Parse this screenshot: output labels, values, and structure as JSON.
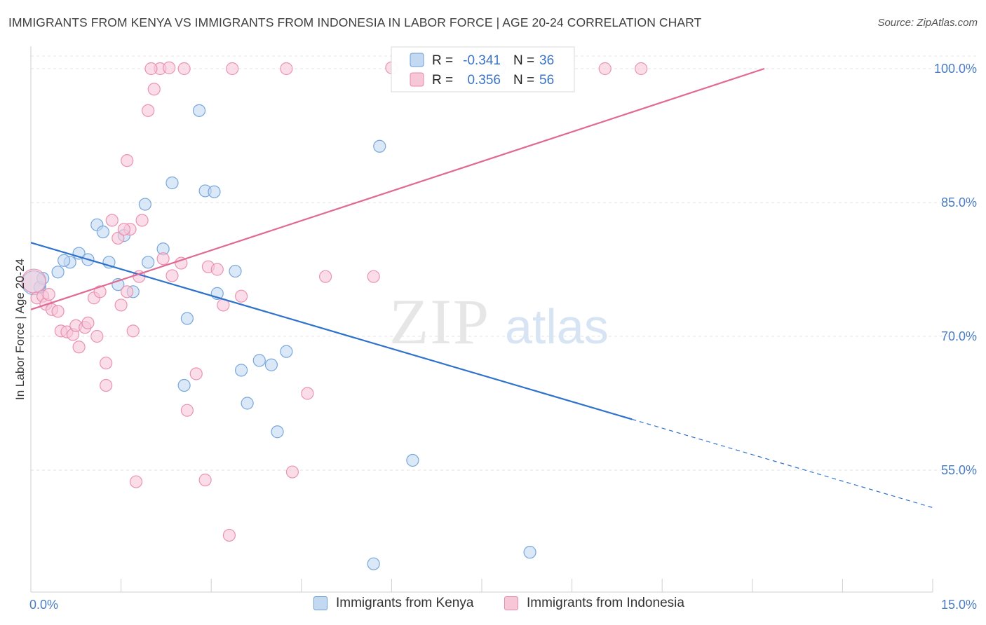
{
  "title": "IMMIGRANTS FROM KENYA VS IMMIGRANTS FROM INDONESIA IN LABOR FORCE | AGE 20-24 CORRELATION CHART",
  "source": "Source: ZipAtlas.com",
  "watermark": {
    "zip": "ZIP",
    "atlas": "atlas"
  },
  "chart_data": {
    "type": "scatter",
    "xlabel": "",
    "ylabel": "In Labor Force | Age 20-24",
    "xlim": [
      0,
      15
    ],
    "ylim": [
      42,
      102
    ],
    "x_tick_labels": {
      "min": "0.0%",
      "max": "15.0%"
    },
    "y_ticks": [
      {
        "value": 100,
        "label": "100.0%"
      },
      {
        "value": 85,
        "label": "85.0%"
      },
      {
        "value": 70,
        "label": "70.0%"
      },
      {
        "value": 55,
        "label": "55.0%"
      }
    ],
    "grid": true,
    "legend_position": "top-center",
    "series": [
      {
        "name": "Immigrants from Kenya",
        "color": "#6a9fd8",
        "fill": "#c3d9f2",
        "line_color": "#2e72cc",
        "stats": {
          "r_label": "R =",
          "r": "-0.341",
          "n_label": "N =",
          "n": "36"
        },
        "trend": {
          "x0": 0,
          "y0": 80.5,
          "x1": 10,
          "y1": 60.7,
          "dash_x1": 15,
          "dash_y1": 50.8
        },
        "points": [
          [
            0.15,
            75.5
          ],
          [
            0.2,
            76.5
          ],
          [
            0.45,
            77.2
          ],
          [
            0.65,
            78.3
          ],
          [
            0.55,
            78.5
          ],
          [
            0.8,
            79.3
          ],
          [
            0.95,
            78.6
          ],
          [
            1.1,
            82.5
          ],
          [
            1.2,
            81.7
          ],
          [
            1.3,
            78.3
          ],
          [
            1.45,
            75.8
          ],
          [
            1.55,
            81.3
          ],
          [
            1.7,
            75.0
          ],
          [
            1.9,
            84.8
          ],
          [
            1.95,
            78.3
          ],
          [
            2.2,
            79.8
          ],
          [
            2.35,
            87.2
          ],
          [
            2.6,
            72.0
          ],
          [
            2.55,
            64.5
          ],
          [
            2.8,
            95.3
          ],
          [
            2.9,
            86.3
          ],
          [
            3.05,
            86.2
          ],
          [
            3.1,
            74.8
          ],
          [
            3.4,
            77.3
          ],
          [
            3.5,
            66.2
          ],
          [
            3.6,
            62.5
          ],
          [
            3.8,
            67.3
          ],
          [
            4.0,
            66.8
          ],
          [
            4.1,
            59.3
          ],
          [
            4.25,
            68.3
          ],
          [
            5.7,
            44.5
          ],
          [
            5.8,
            91.3
          ],
          [
            6.35,
            56.1
          ],
          [
            7.8,
            100.1
          ],
          [
            8.3,
            45.8
          ],
          [
            0.05,
            76.0
          ]
        ]
      },
      {
        "name": "Immigrants from Indonesia",
        "color": "#e88aaa",
        "fill": "#f7c7d8",
        "line_color": "#e06a93",
        "stats": {
          "r_label": "R =",
          "r": "0.356",
          "n_label": "N =",
          "n": "56"
        },
        "trend": {
          "x0": 0,
          "y0": 73.0,
          "x1": 12.2,
          "y1": 100.0
        },
        "points": [
          [
            0.05,
            76.2
          ],
          [
            0.1,
            74.3
          ],
          [
            0.2,
            74.5
          ],
          [
            0.25,
            73.6
          ],
          [
            0.3,
            74.7
          ],
          [
            0.35,
            73.0
          ],
          [
            0.45,
            72.8
          ],
          [
            0.5,
            70.6
          ],
          [
            0.6,
            70.5
          ],
          [
            0.7,
            70.2
          ],
          [
            0.75,
            71.2
          ],
          [
            0.8,
            68.8
          ],
          [
            0.9,
            71.0
          ],
          [
            0.95,
            71.5
          ],
          [
            1.05,
            74.3
          ],
          [
            1.1,
            70.0
          ],
          [
            1.15,
            75.0
          ],
          [
            1.25,
            67.0
          ],
          [
            1.25,
            64.5
          ],
          [
            1.35,
            83.0
          ],
          [
            1.45,
            81.0
          ],
          [
            1.5,
            73.5
          ],
          [
            1.6,
            75.0
          ],
          [
            1.65,
            82.0
          ],
          [
            1.7,
            70.6
          ],
          [
            1.8,
            76.7
          ],
          [
            1.55,
            82.0
          ],
          [
            1.6,
            89.7
          ],
          [
            1.75,
            53.7
          ],
          [
            1.85,
            83.0
          ],
          [
            1.95,
            95.3
          ],
          [
            2.05,
            97.7
          ],
          [
            2.15,
            100.0
          ],
          [
            2.0,
            100.0
          ],
          [
            2.3,
            100.1
          ],
          [
            2.35,
            76.8
          ],
          [
            2.5,
            78.2
          ],
          [
            2.6,
            61.7
          ],
          [
            2.2,
            78.7
          ],
          [
            2.55,
            100.0
          ],
          [
            2.75,
            65.8
          ],
          [
            2.9,
            53.9
          ],
          [
            2.95,
            77.8
          ],
          [
            3.1,
            77.5
          ],
          [
            3.2,
            73.5
          ],
          [
            3.3,
            47.7
          ],
          [
            3.35,
            100.0
          ],
          [
            3.5,
            74.5
          ],
          [
            4.25,
            100.0
          ],
          [
            4.35,
            54.8
          ],
          [
            4.6,
            63.6
          ],
          [
            4.9,
            76.7
          ],
          [
            5.7,
            76.7
          ],
          [
            6.0,
            100.1
          ],
          [
            9.55,
            100.0
          ],
          [
            10.15,
            100.0
          ]
        ]
      }
    ]
  }
}
